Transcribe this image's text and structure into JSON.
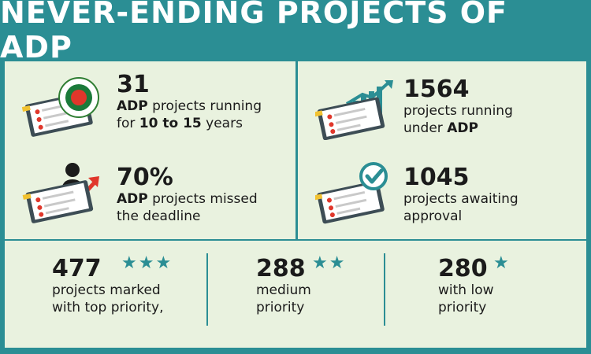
{
  "title": "NEVER-ENDING PROJECTS OF ADP",
  "stats": [
    {
      "value": "31",
      "line1_bold": "ADP",
      "line1_rest": " projects running",
      "line2_pre": "for ",
      "line2_bold": "10 to 15",
      "line2_post": " years"
    },
    {
      "value": "1564",
      "line1": "projects running",
      "line2_pre": "under ",
      "line2_bold": "ADP"
    },
    {
      "value": "70%",
      "line1_bold": "ADP",
      "line1_rest": " projects missed",
      "line2": "the deadline"
    },
    {
      "value": "1045",
      "line1": "projects awaiting",
      "line2": "approval"
    }
  ],
  "priority": [
    {
      "value": "477",
      "line1": "projects marked",
      "line2": "with top priority,",
      "stars": "★★★"
    },
    {
      "value": "288",
      "line1": "medium",
      "line2": "priority",
      "stars": "★★"
    },
    {
      "value": "280",
      "line1": "with low",
      "line2": "priority",
      "stars": "★"
    }
  ],
  "colors": {
    "accent": "#2b8e94",
    "panel": "#e9f2df",
    "red": "#e0372b",
    "gold": "#f2c230"
  },
  "icons": [
    "govt-seal-icon",
    "clipboard-icon",
    "growth-chart-icon",
    "person-arrow-icon",
    "checkmark-icon",
    "star-icon"
  ]
}
